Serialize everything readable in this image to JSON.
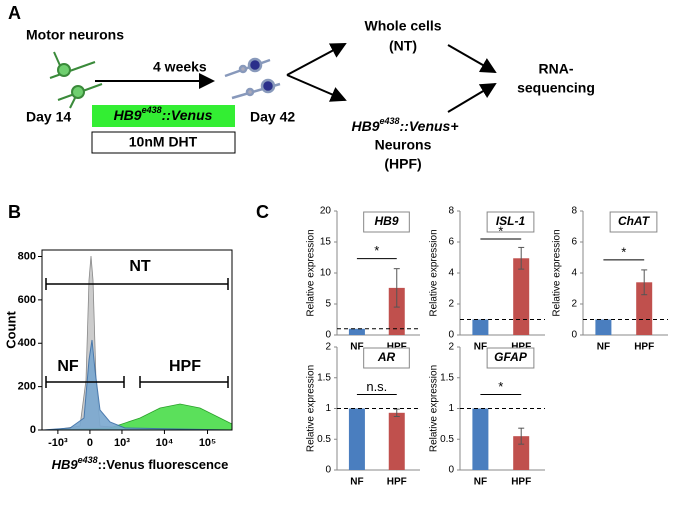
{
  "panel_labels": [
    "A",
    "B",
    "C"
  ],
  "diagram": {
    "start_title": "Motor neurons",
    "start_day": "Day 14",
    "duration": "4 weeks",
    "end_day": "Day 42",
    "reporter": {
      "gene": "HB9",
      "sup": "e438",
      "rest": "::Venus"
    },
    "treatment": "10nM DHT",
    "whole": [
      "Whole cells",
      "(NT)"
    ],
    "sorted": {
      "gene": "HB9",
      "sup": "e438",
      "rest": "::Venus+",
      "lines": [
        "Neurons",
        "(HPF)"
      ]
    },
    "output": [
      "RNA-",
      "sequencing"
    ]
  },
  "flow": {
    "ylabel": "Count",
    "xlabel": {
      "gene": "HB9",
      "sup": "e438",
      "rest": "::Venus fluorescence"
    },
    "ylim": [
      0,
      830
    ],
    "yticks": [
      0,
      200,
      400,
      600,
      800
    ],
    "xlim": [
      -2400,
      370000
    ],
    "xscale": "biexponential",
    "xticks": [
      {
        "value": -1000,
        "label": "-10³"
      },
      0,
      {
        "value": 1000,
        "label": "10³"
      },
      {
        "value": 10000,
        "label": "10⁴"
      },
      {
        "value": 100000,
        "label": "10⁵"
      }
    ],
    "gates": [
      "NT",
      "NF",
      "HPF"
    ]
  },
  "chart_data": [
    {
      "type": "bar",
      "title": "HB9",
      "ylabel": "Relative expression",
      "categories": [
        "NF",
        "HPF"
      ],
      "values": [
        1,
        7.6
      ],
      "errors": [
        0,
        3.1
      ],
      "colors": [
        "#4a7ebf",
        "#c0504d"
      ],
      "ylim": [
        0,
        20
      ],
      "yticks": [
        0,
        5,
        10,
        15,
        20
      ],
      "reference_line": 1,
      "significance": "*"
    },
    {
      "type": "bar",
      "title": "ISL-1",
      "ylabel": "Relative expression",
      "categories": [
        "NF",
        "HPF"
      ],
      "values": [
        1,
        4.95
      ],
      "errors": [
        0,
        0.7
      ],
      "colors": [
        "#4a7ebf",
        "#c0504d"
      ],
      "ylim": [
        0,
        8
      ],
      "yticks": [
        0,
        2,
        4,
        6,
        8
      ],
      "reference_line": 1,
      "significance": "*"
    },
    {
      "type": "bar",
      "title": "ChAT",
      "ylabel": "Relative expression",
      "categories": [
        "NF",
        "HPF"
      ],
      "values": [
        1,
        3.4
      ],
      "errors": [
        0,
        0.8
      ],
      "colors": [
        "#4a7ebf",
        "#c0504d"
      ],
      "ylim": [
        0,
        8
      ],
      "yticks": [
        0,
        2,
        4,
        6,
        8
      ],
      "reference_line": 1,
      "significance": "*"
    },
    {
      "type": "bar",
      "title": "AR",
      "ylabel": "Relative expression",
      "categories": [
        "NF",
        "HPF"
      ],
      "values": [
        1,
        0.93
      ],
      "errors": [
        0,
        0.06
      ],
      "colors": [
        "#4a7ebf",
        "#c0504d"
      ],
      "ylim": [
        0,
        2
      ],
      "yticks": [
        0,
        0.5,
        1,
        1.5,
        2
      ],
      "reference_line": 1,
      "significance": "n.s."
    },
    {
      "type": "bar",
      "title": "GFAP",
      "ylabel": "Relative expression",
      "categories": [
        "NF",
        "HPF"
      ],
      "values": [
        1,
        0.55
      ],
      "errors": [
        0,
        0.13
      ],
      "colors": [
        "#4a7ebf",
        "#c0504d"
      ],
      "ylim": [
        0,
        2
      ],
      "yticks": [
        0,
        0.5,
        1,
        1.5,
        2
      ],
      "reference_line": 1,
      "significance": "*"
    }
  ]
}
